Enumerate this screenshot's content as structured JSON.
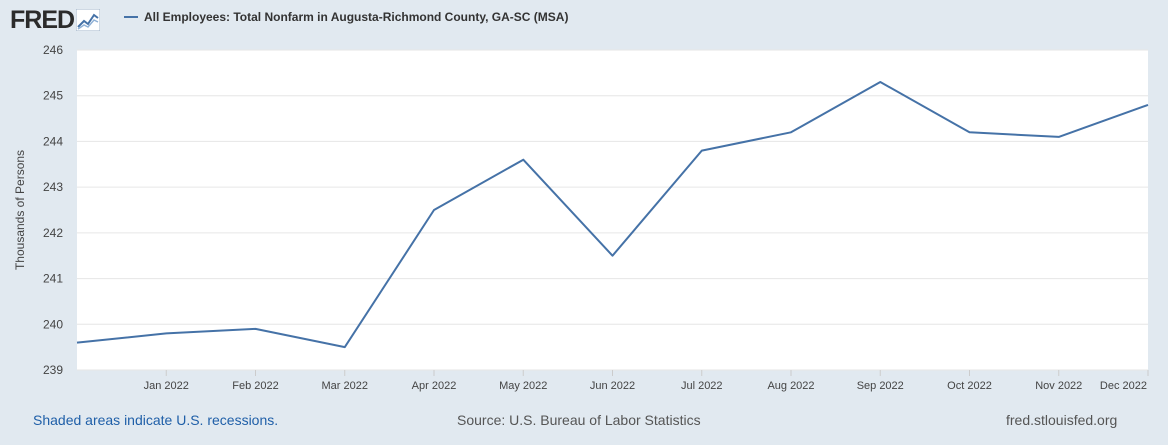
{
  "logo": {
    "text": "FRED"
  },
  "colors": {
    "series": "#4572a7",
    "background": "#e1e9f0",
    "plot": "#ffffff",
    "link": "#1f5fa8"
  },
  "chart_data": {
    "type": "line",
    "legend_placement": "top-left",
    "grid": true,
    "ylabel": "Thousands of Persons",
    "ylim": [
      239,
      246
    ],
    "yticks": [
      239,
      240,
      241,
      242,
      243,
      244,
      245,
      246
    ],
    "xlim": [
      "Dec 2021",
      "Dec 2022"
    ],
    "xtick_labels": [
      "Jan 2022",
      "Feb 2022",
      "Mar 2022",
      "Apr 2022",
      "May 2022",
      "Jun 2022",
      "Jul 2022",
      "Aug 2022",
      "Sep 2022",
      "Oct 2022",
      "Nov 2022",
      "Dec 2022"
    ],
    "x": [
      "Dec 2021",
      "Jan 2022",
      "Feb 2022",
      "Mar 2022",
      "Apr 2022",
      "May 2022",
      "Jun 2022",
      "Jul 2022",
      "Aug 2022",
      "Sep 2022",
      "Oct 2022",
      "Nov 2022",
      "Dec 2022"
    ],
    "series": [
      {
        "name": "All Employees: Total Nonfarm in Augusta-Richmond County, GA-SC (MSA)",
        "values": [
          239.6,
          239.8,
          239.9,
          239.5,
          242.5,
          243.6,
          241.5,
          243.8,
          244.2,
          245.3,
          244.2,
          244.1,
          244.8
        ]
      }
    ]
  },
  "footer": {
    "recession_note": "Shaded areas indicate U.S. recessions.",
    "source": "Source: U.S. Bureau of Labor Statistics",
    "site": "fred.stlouisfed.org"
  }
}
